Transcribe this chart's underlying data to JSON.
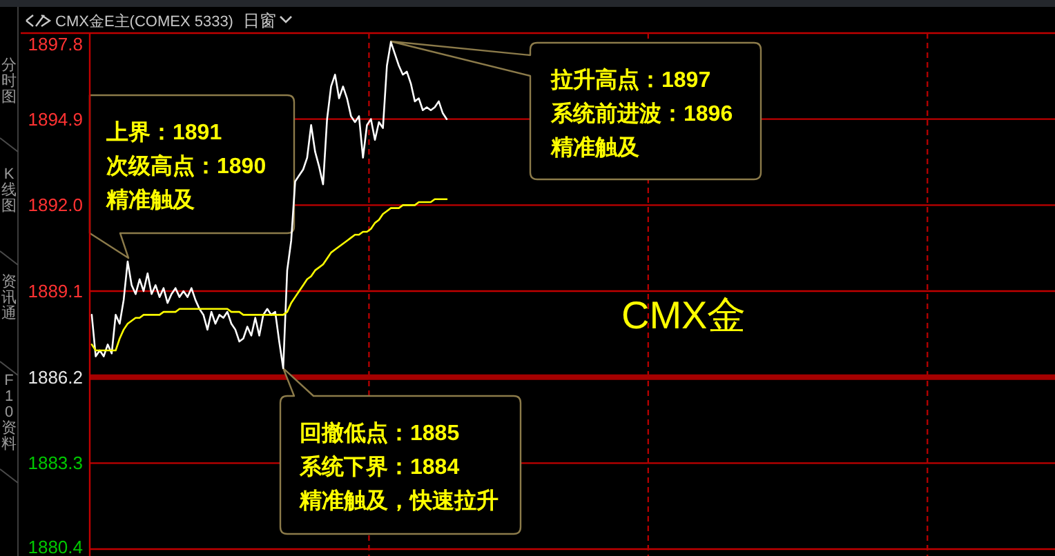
{
  "chart_data": {
    "type": "line",
    "title": "CMX金E主(COMEX 5333)",
    "categories": [
      null,
      null,
      null,
      null,
      null,
      null,
      null,
      null,
      null,
      null,
      null,
      null,
      null,
      null,
      null,
      null,
      null,
      null,
      null,
      null,
      null,
      null,
      null,
      null,
      null,
      null,
      null,
      null,
      null,
      null,
      null,
      null,
      null,
      null,
      null,
      null,
      null,
      null,
      null,
      null,
      null,
      null,
      null,
      null,
      null,
      null,
      null,
      null,
      null,
      null,
      null,
      null,
      null,
      null,
      null,
      null,
      null,
      null,
      null,
      null,
      null,
      null,
      null,
      null,
      null,
      null,
      null,
      null,
      null,
      null,
      null,
      null,
      null,
      null,
      null,
      null,
      null,
      null,
      null,
      null,
      null,
      null,
      null,
      null,
      null,
      null,
      null,
      null,
      null,
      null,
      null,
      null,
      null,
      null,
      null,
      null,
      null,
      null,
      null,
      null,
      null,
      null,
      null,
      null,
      null,
      null,
      null,
      null,
      null,
      null,
      null,
      null,
      null,
      null,
      null,
      null,
      null,
      null,
      null,
      null,
      null,
      null,
      null,
      null,
      null,
      null,
      null,
      null,
      null,
      null,
      null,
      null,
      null,
      null,
      null,
      null,
      null,
      null,
      null,
      null,
      null,
      null,
      null,
      null,
      null,
      null,
      null,
      null,
      null,
      null,
      null,
      null,
      null,
      null,
      null,
      null,
      null,
      null,
      null,
      null,
      null,
      null,
      null,
      null,
      null,
      null,
      null,
      null,
      null,
      null,
      null,
      null,
      null,
      null,
      null,
      null,
      null,
      null,
      null,
      null,
      null,
      null,
      null,
      null,
      null,
      null,
      null,
      null,
      null,
      null,
      null,
      null,
      null,
      null,
      null,
      null,
      null,
      null,
      null,
      null,
      null,
      null,
      null,
      null,
      null,
      null,
      null,
      null,
      null,
      null,
      null,
      null,
      null,
      null,
      null,
      null,
      null,
      null,
      null,
      null,
      null,
      null,
      null,
      null,
      null,
      null,
      null,
      null,
      null,
      null,
      null,
      null,
      null,
      null,
      null,
      null,
      null,
      null,
      null,
      null,
      null,
      null
    ],
    "series": [
      {
        "color": "#ffffff",
        "values": [
          1888.3,
          1886.9,
          1887.1,
          1886.9,
          1887.3,
          1887.0,
          1888.3,
          1888.0,
          1888.8,
          1890.1,
          1889.3,
          1889.0,
          1889.5,
          1889.1,
          1889.7,
          1889.0,
          1889.3,
          1888.9,
          1889.2,
          1888.7,
          1889.0,
          1889.2,
          1888.9,
          1889.1,
          1888.9,
          1889.2,
          1888.8,
          1888.5,
          1888.3,
          1887.8,
          1888.4,
          1888.0,
          1888.3,
          1888.2,
          1888.4,
          1888.0,
          1887.8,
          1887.4,
          1887.5,
          1887.9,
          1887.6,
          1888.2,
          1887.6,
          1888.3,
          1888.5,
          1888.3,
          1888.4,
          1887.4,
          1886.5,
          1889.8,
          1890.8,
          1892.8,
          1893.0,
          1893.2,
          1893.6,
          1894.7,
          1893.8,
          1893.3,
          1892.7,
          1894.9,
          1896.0,
          1896.4,
          1895.6,
          1896.0,
          1895.6,
          1895.0,
          1894.8,
          1895.0,
          1893.6,
          1894.7,
          1894.9,
          1894.2,
          1894.8,
          1894.6,
          1896.7,
          1897.5,
          1897.1,
          1896.7,
          1896.4,
          1896.5,
          1896.1,
          1895.5,
          1895.6,
          1895.2,
          1895.3,
          1895.2,
          1895.3,
          1895.5,
          1895.1,
          1894.9,
          null,
          null,
          null,
          null,
          null,
          null,
          null,
          null,
          null,
          null,
          null,
          null,
          null,
          null,
          null,
          null,
          null,
          null,
          null,
          null,
          null,
          null,
          null,
          null,
          null,
          null,
          null,
          null,
          null,
          null,
          null,
          null,
          null,
          null,
          null,
          null,
          null,
          null,
          null,
          null,
          null,
          null,
          null,
          null,
          null,
          null,
          null,
          null,
          null,
          null,
          null,
          null,
          null,
          null,
          null,
          null,
          null,
          null,
          null,
          null,
          null,
          null,
          null,
          null,
          null,
          null,
          null,
          null,
          null,
          null,
          null,
          null,
          null,
          null,
          null,
          null,
          null,
          null,
          null,
          null,
          null,
          null,
          null,
          null,
          null,
          null,
          null,
          null,
          null,
          null,
          null,
          null,
          null,
          null,
          null,
          null,
          null,
          null,
          null,
          null,
          null,
          null,
          null,
          null,
          null,
          null,
          null,
          null,
          null,
          null,
          null,
          null,
          null,
          null,
          null,
          null,
          null,
          null,
          null,
          null,
          null,
          null,
          null,
          null,
          null,
          null,
          null,
          null,
          null,
          null,
          null,
          null,
          null,
          null,
          null,
          null,
          null,
          null,
          null,
          null,
          null,
          null,
          null,
          null,
          null,
          null,
          null,
          null,
          null,
          null,
          null,
          null
        ]
      },
      {
        "color": "#ffff00",
        "values": [
          1887.3,
          1887.1,
          1887.1,
          1887.1,
          1887.1,
          1887.1,
          1887.1,
          1887.5,
          1887.8,
          1888.0,
          1888.1,
          1888.2,
          1888.2,
          1888.3,
          1888.3,
          1888.3,
          1888.3,
          1888.3,
          1888.4,
          1888.4,
          1888.4,
          1888.4,
          1888.5,
          1888.5,
          1888.5,
          1888.5,
          1888.5,
          1888.5,
          1888.5,
          1888.5,
          1888.5,
          1888.5,
          1888.5,
          1888.5,
          1888.5,
          1888.4,
          1888.4,
          1888.4,
          1888.3,
          1888.3,
          1888.3,
          1888.3,
          1888.3,
          1888.3,
          1888.3,
          1888.3,
          1888.3,
          1888.3,
          1888.3,
          1888.4,
          1888.7,
          1888.9,
          1889.1,
          1889.3,
          1889.5,
          1889.6,
          1889.8,
          1889.9,
          1890.0,
          1890.2,
          1890.4,
          1890.5,
          1890.6,
          1890.7,
          1890.8,
          1890.9,
          1891.0,
          1891.0,
          1891.1,
          1891.1,
          1891.2,
          1891.4,
          1891.5,
          1891.7,
          1891.8,
          1891.9,
          1891.9,
          1891.9,
          1892.0,
          1892.0,
          1892.0,
          1892.0,
          1892.1,
          1892.1,
          1892.1,
          1892.1,
          1892.2,
          1892.2,
          1892.2,
          1892.2,
          null,
          null,
          null,
          null,
          null,
          null,
          null,
          null,
          null,
          null,
          null,
          null,
          null,
          null,
          null,
          null,
          null,
          null,
          null,
          null,
          null,
          null,
          null,
          null,
          null,
          null,
          null,
          null,
          null,
          null,
          null,
          null,
          null,
          null,
          null,
          null,
          null,
          null,
          null,
          null,
          null,
          null,
          null,
          null,
          null,
          null,
          null,
          null,
          null,
          null,
          null,
          null,
          null,
          null,
          null,
          null,
          null,
          null,
          null,
          null,
          null,
          null,
          null,
          null,
          null,
          null,
          null,
          null,
          null,
          null,
          null,
          null,
          null,
          null,
          null,
          null,
          null,
          null,
          null,
          null,
          null,
          null,
          null,
          null,
          null,
          null,
          null,
          null,
          null,
          null,
          null,
          null,
          null,
          null,
          null,
          null,
          null,
          null,
          null,
          null,
          null,
          null,
          null,
          null,
          null,
          null,
          null,
          null,
          null,
          null,
          null,
          null,
          null,
          null,
          null,
          null,
          null,
          null,
          null,
          null,
          null,
          null,
          null,
          null,
          null,
          null,
          null,
          null,
          null,
          null,
          null,
          null,
          null,
          null,
          null,
          null,
          null,
          null,
          null,
          null,
          null,
          null,
          null,
          null,
          null,
          null,
          null,
          null,
          null,
          null,
          null,
          null
        ]
      }
    ],
    "ylim": [
      1880.4,
      1897.8
    ],
    "yticks": [
      1880.4,
      1883.3,
      1886.2,
      1889.1,
      {
        "value": 1892,
        "label": "1892.0"
      },
      1894.9,
      1897.8
    ],
    "grid": "y",
    "tick_labels": "y",
    "ref_lines": [
      {
        "axis": "y",
        "value": 1886.2,
        "color": "#a50000"
      }
    ],
    "annotations": [
      "上界：1891\n次级高点：1890\n精准触及",
      "拉升高点：1897\n系统前进波：1896\n精准触及",
      {
        "text": "回撤低点：1885\n系统下界：1884\n精准触及，快速拉升",
        "y": 1886.5
      },
      "CMX金",
      "日窗",
      "分时图",
      "K线图",
      "资讯通",
      "F10资料"
    ]
  }
}
